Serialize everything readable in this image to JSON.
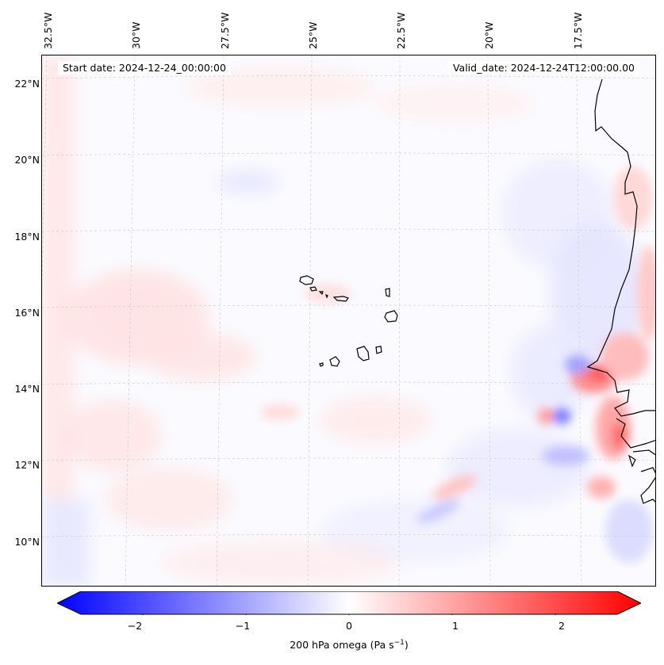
{
  "map": {
    "variable": "200 hPa omega",
    "start_date": "Start date: 2024-12-24_00:00:00",
    "valid_date": "Valid_date: 2024-12-24T12:00:00.00",
    "lon_labels": [
      "32.5°W",
      "30°W",
      "27.5°W",
      "25°W",
      "22.5°W",
      "20°W",
      "17.5°W"
    ],
    "lat_labels": [
      "22°N",
      "20°N",
      "18°N",
      "16°N",
      "14°N",
      "12°N",
      "10°N"
    ],
    "features": [
      "Cabo Verde islands",
      "West African coastline"
    ]
  },
  "colorbar": {
    "label_prefix": "200 hPa omega (Pa s",
    "label_exp": "−1",
    "label_suffix": ")",
    "ticks": [
      "−2",
      "−1",
      "0",
      "1",
      "2"
    ],
    "tick_values": [
      -2,
      -1,
      0,
      1,
      2
    ],
    "range": [
      -2.6,
      2.6
    ],
    "colors": {
      "min": "#0000ff",
      "mid": "#ffffff",
      "max": "#ff0000"
    }
  }
}
